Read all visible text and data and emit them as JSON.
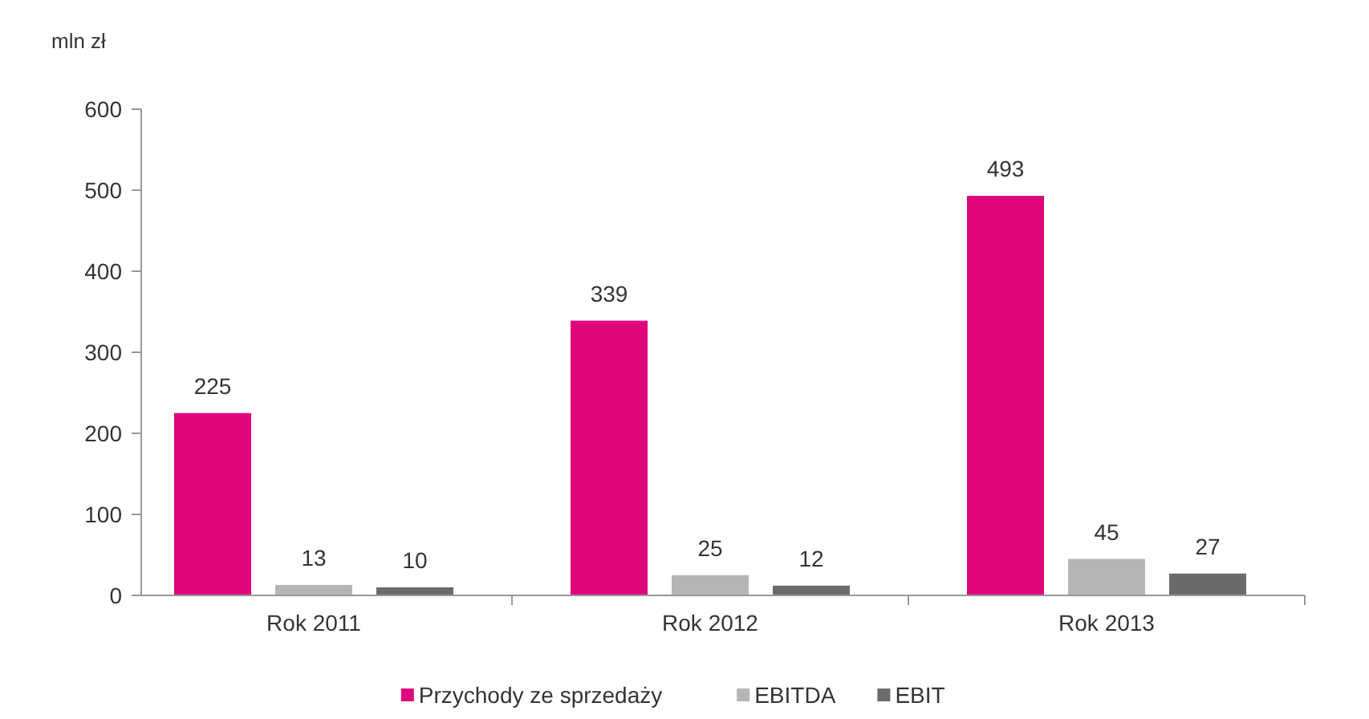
{
  "chart_data": {
    "type": "bar",
    "ylabel": "mln zł",
    "categories": [
      "Rok 2011",
      "Rok 2012",
      "Rok 2013"
    ],
    "series": [
      {
        "name": "Przychody ze sprzedaży",
        "color": "#e0077d",
        "values": [
          225,
          339,
          493
        ]
      },
      {
        "name": "EBITDA",
        "color": "#b5b5b5",
        "values": [
          13,
          25,
          45
        ]
      },
      {
        "name": "EBIT",
        "color": "#6b6b6b",
        "values": [
          10,
          12,
          27
        ]
      }
    ],
    "ylim": [
      0,
      600
    ],
    "yticks": [
      0,
      100,
      200,
      300,
      400,
      500,
      600
    ],
    "grid": false,
    "data_labels": true,
    "legend": "bottom"
  }
}
